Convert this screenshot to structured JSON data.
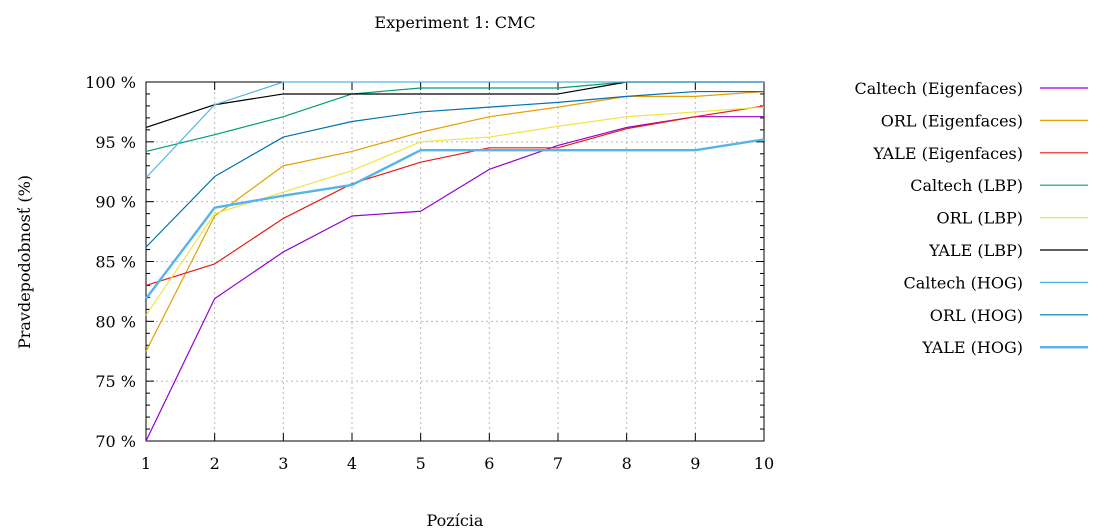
{
  "chart_data": {
    "type": "line",
    "title": "Experiment 1: CMC",
    "xlabel": "Pozícia",
    "ylabel": "Pravdepodobnosť (%)",
    "x": [
      1,
      2,
      3,
      4,
      5,
      6,
      7,
      8,
      9,
      10
    ],
    "xlim": [
      1,
      10
    ],
    "ylim": [
      70,
      100
    ],
    "y_ticks": [
      70,
      75,
      80,
      85,
      90,
      95,
      100
    ],
    "y_tick_labels": [
      "70 %",
      "75 %",
      "80 %",
      "85 %",
      "90 %",
      "95 %",
      "100 %"
    ],
    "x_tick_labels": [
      "1",
      "2",
      "3",
      "4",
      "5",
      "6",
      "7",
      "8",
      "9",
      "10"
    ],
    "grid": true,
    "legend_position": "right",
    "series": [
      {
        "name": "Caltech (Eigenfaces)",
        "color": "#9400d3",
        "values": [
          70.0,
          81.9,
          85.8,
          88.8,
          89.2,
          92.7,
          94.7,
          96.2,
          97.1,
          97.1
        ]
      },
      {
        "name": "ORL (Eigenfaces)",
        "color": "#e69f00",
        "values": [
          77.5,
          88.8,
          93.0,
          94.2,
          95.8,
          97.1,
          97.9,
          98.8,
          98.8,
          99.2
        ]
      },
      {
        "name": "YALE (Eigenfaces)",
        "color": "#e51e10",
        "values": [
          83.0,
          84.8,
          88.6,
          91.5,
          93.3,
          94.5,
          94.5,
          96.1,
          97.1,
          98.0
        ]
      },
      {
        "name": "Caltech (LBP)",
        "color": "#009e73",
        "values": [
          94.2,
          95.6,
          97.1,
          99.0,
          99.5,
          99.5,
          99.5,
          100.0,
          100.0,
          100.0
        ]
      },
      {
        "name": "ORL (LBP)",
        "color": "#f0e442",
        "values": [
          80.5,
          89.0,
          90.8,
          92.6,
          95.0,
          95.4,
          96.3,
          97.1,
          97.5,
          97.9
        ]
      },
      {
        "name": "YALE (LBP)",
        "color": "#000000",
        "values": [
          96.2,
          98.1,
          99.0,
          99.0,
          99.0,
          99.0,
          99.0,
          100.0,
          100.0,
          100.0
        ]
      },
      {
        "name": "Caltech (HOG)",
        "color": "#56b4e9",
        "values": [
          92.0,
          98.1,
          100.0,
          100.0,
          100.0,
          100.0,
          100.0,
          100.0,
          100.0,
          100.0
        ]
      },
      {
        "name": "ORL (HOG)",
        "color": "#0072b2",
        "values": [
          86.2,
          92.1,
          95.4,
          96.7,
          97.5,
          97.9,
          98.3,
          98.8,
          99.2,
          99.2
        ]
      },
      {
        "name": "YALE (HOG)",
        "color": "#56b4e9",
        "thick": true,
        "values": [
          81.9,
          89.5,
          90.5,
          91.4,
          94.3,
          94.3,
          94.3,
          94.3,
          94.3,
          95.2
        ]
      }
    ]
  }
}
